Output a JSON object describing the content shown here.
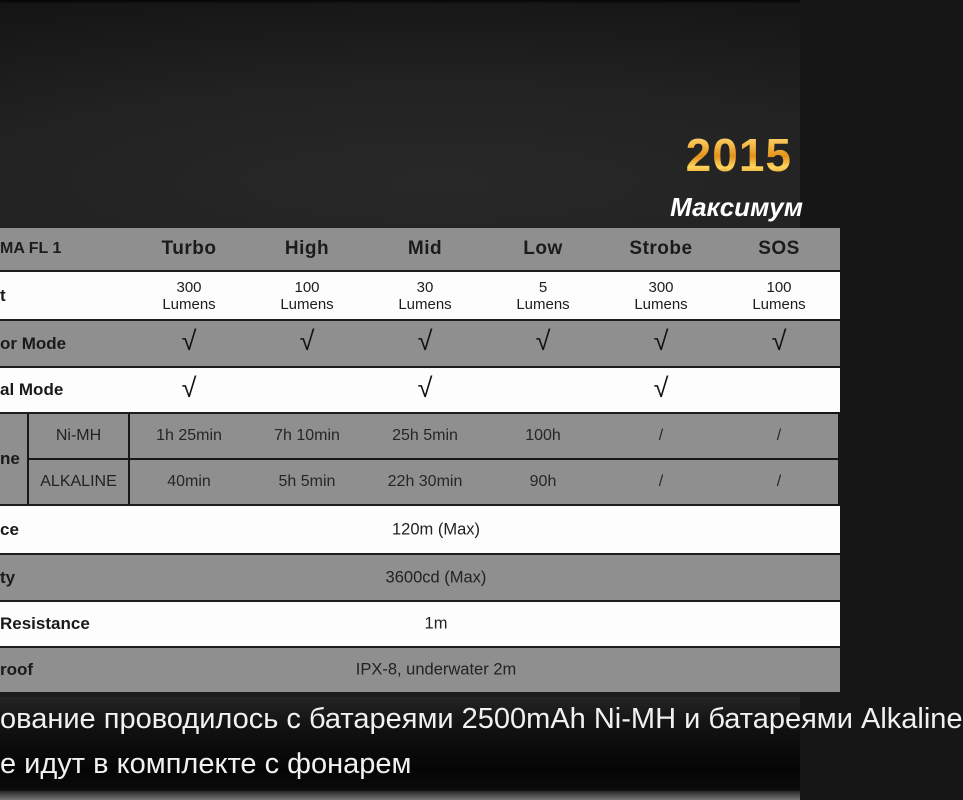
{
  "banner": {
    "year": "2015",
    "tagline": "Максимум"
  },
  "table": {
    "corner_label": "MA FL 1",
    "modes": [
      "Turbo",
      "High",
      "Mid",
      "Low",
      "Strobe",
      "SOS"
    ],
    "output": {
      "label": "t",
      "unit": "Lumens",
      "values": [
        "300",
        "100",
        "30",
        "5",
        "300",
        "100"
      ]
    },
    "outdoor": {
      "label": "or Mode",
      "checks": [
        "√",
        "√",
        "√",
        "√",
        "√",
        "√"
      ]
    },
    "signal": {
      "label": "al Mode",
      "checks": [
        "√",
        "",
        "√",
        "",
        "√",
        ""
      ]
    },
    "runtime": {
      "label": "ne",
      "batteries": [
        {
          "name": "Ni-MH",
          "values": [
            "1h 25min",
            "7h 10min",
            "25h 5min",
            "100h",
            "/",
            "/"
          ]
        },
        {
          "name": "ALKALINE",
          "values": [
            "40min",
            "5h 5min",
            "22h 30min",
            "90h",
            "/",
            "/"
          ]
        }
      ]
    },
    "specs": [
      {
        "label": "ce",
        "value": "120m (Max)"
      },
      {
        "label": "ty",
        "value": "3600cd (Max)"
      },
      {
        "label": "Resistance",
        "value": "1m"
      },
      {
        "label": "roof",
        "value": "IPX-8, underwater 2m"
      }
    ]
  },
  "footer": {
    "line1": "ование проводилось с батареями 2500mAh Ni-MH и батареями Alkaline",
    "line2": "е идут в комплекте с фонарем"
  },
  "colors": {
    "gold": "#f0a62c",
    "row_gray": "#8f8f8f",
    "row_white": "#fdfdfd",
    "background": "#1d1d1d"
  }
}
